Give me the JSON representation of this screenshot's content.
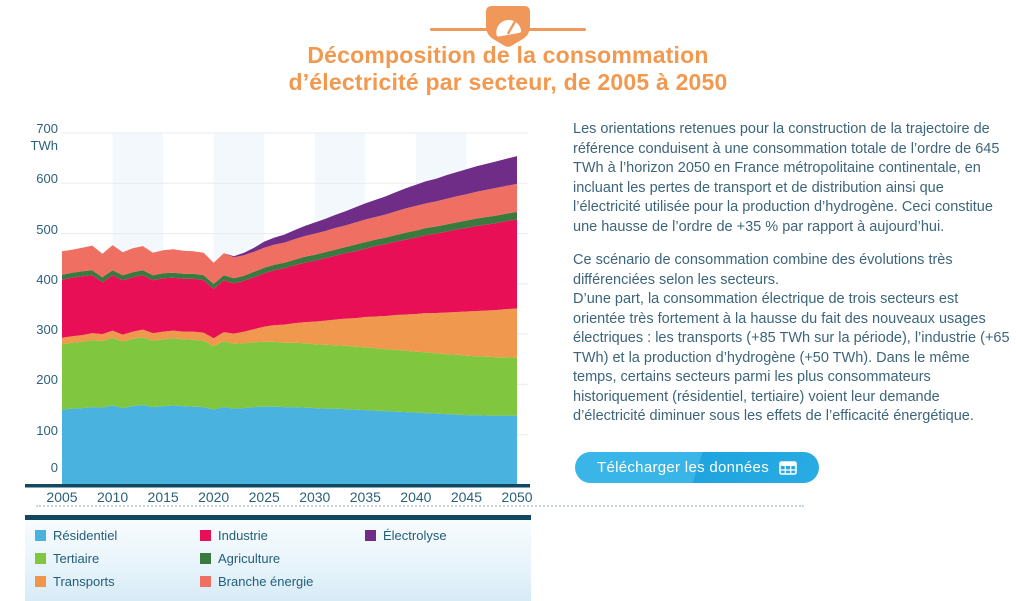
{
  "header": {
    "title_line1": "Décomposition de la consommation",
    "title_line2": "d’électricité par secteur, de 2005 à 2050",
    "accent_color": "#F2994F",
    "icon": "gauge-badge-icon"
  },
  "chart_data": {
    "type": "area",
    "stacked": true,
    "title": "Décomposition de la consommation d’électricité par secteur, de 2005 à 2050",
    "unit": "TWh",
    "y_axis": {
      "min": 0,
      "max": 700,
      "step": 100,
      "unit_label": "TWh"
    },
    "x_ticks": [
      2005,
      2010,
      2015,
      2020,
      2025,
      2030,
      2035,
      2040,
      2045,
      2050
    ],
    "x": [
      2005,
      2006,
      2007,
      2008,
      2009,
      2010,
      2011,
      2012,
      2013,
      2014,
      2015,
      2016,
      2017,
      2018,
      2019,
      2020,
      2021,
      2022,
      2023,
      2024,
      2025,
      2026,
      2027,
      2028,
      2029,
      2030,
      2031,
      2032,
      2033,
      2034,
      2035,
      2036,
      2037,
      2038,
      2039,
      2040,
      2041,
      2042,
      2043,
      2044,
      2045,
      2046,
      2047,
      2048,
      2049,
      2050
    ],
    "series": [
      {
        "name": "Résidentiel",
        "color": "#49B2DF",
        "values": [
          150,
          152,
          153,
          155,
          154,
          158,
          153,
          157,
          159,
          155,
          157,
          158,
          157,
          156,
          155,
          150,
          155,
          152,
          153,
          155,
          156,
          156,
          155,
          155,
          154,
          153,
          152,
          152,
          151,
          150,
          149,
          148,
          147,
          146,
          145,
          144,
          143,
          142,
          141,
          140,
          139,
          139,
          138,
          138,
          138,
          138
        ]
      },
      {
        "name": "Tertiaire",
        "color": "#80C73F",
        "values": [
          130,
          131,
          132,
          133,
          132,
          135,
          132,
          134,
          135,
          132,
          133,
          134,
          133,
          133,
          132,
          126,
          131,
          129,
          129,
          129,
          129,
          129,
          128,
          128,
          128,
          127,
          127,
          126,
          126,
          125,
          125,
          124,
          123,
          123,
          122,
          121,
          121,
          120,
          119,
          119,
          118,
          117,
          117,
          116,
          116,
          115
        ]
      },
      {
        "name": "Transports",
        "color": "#F0994E",
        "values": [
          13,
          13,
          13,
          14,
          14,
          14,
          14,
          14,
          15,
          15,
          15,
          15,
          15,
          16,
          16,
          16,
          18,
          20,
          23,
          26,
          30,
          33,
          36,
          39,
          42,
          45,
          48,
          51,
          54,
          57,
          60,
          63,
          66,
          69,
          72,
          75,
          78,
          80,
          83,
          85,
          88,
          90,
          92,
          94,
          96,
          98
        ]
      },
      {
        "name": "Industrie",
        "color": "#E80F57",
        "values": [
          115,
          116,
          117,
          115,
          103,
          110,
          108,
          108,
          108,
          105,
          106,
          105,
          105,
          105,
          104,
          98,
          103,
          100,
          101,
          103,
          106,
          109,
          112,
          115,
          118,
          121,
          124,
          127,
          130,
          133,
          136,
          140,
          143,
          146,
          149,
          152,
          155,
          158,
          161,
          164,
          166,
          169,
          171,
          173,
          175,
          177
        ]
      },
      {
        "name": "Agriculture",
        "color": "#3B7A3E",
        "values": [
          10,
          10,
          10,
          10,
          10,
          10,
          10,
          10,
          10,
          10,
          10,
          10,
          10,
          10,
          10,
          10,
          10,
          10,
          10,
          11,
          11,
          11,
          11,
          11,
          12,
          12,
          12,
          12,
          12,
          13,
          13,
          13,
          13,
          13,
          14,
          14,
          14,
          14,
          14,
          14,
          15,
          15,
          15,
          15,
          15,
          15
        ]
      },
      {
        "name": "Branche énergie",
        "color": "#EF6F62",
        "values": [
          47,
          46,
          47,
          49,
          47,
          50,
          46,
          48,
          48,
          45,
          46,
          47,
          46,
          45,
          45,
          42,
          44,
          42,
          41,
          40,
          40,
          40,
          40,
          41,
          41,
          42,
          42,
          43,
          43,
          44,
          45,
          45,
          46,
          47,
          48,
          49,
          49,
          50,
          51,
          52,
          52,
          53,
          54,
          55,
          55,
          56
        ]
      },
      {
        "name": "Électrolyse",
        "color": "#6F2D87",
        "values": [
          0,
          0,
          0,
          0,
          0,
          0,
          0,
          0,
          0,
          0,
          0,
          0,
          0,
          0,
          0,
          0,
          0,
          2,
          5,
          8,
          12,
          14,
          16,
          18,
          20,
          22,
          24,
          26,
          28,
          30,
          32,
          34,
          36,
          38,
          40,
          42,
          44,
          45,
          47,
          48,
          50,
          51,
          52,
          53,
          54,
          55
        ]
      }
    ],
    "background_bands_x": [
      [
        2010,
        2015
      ],
      [
        2020,
        2025
      ],
      [
        2030,
        2035
      ],
      [
        2040,
        2045
      ]
    ],
    "legend_position": "bottom",
    "grid": true,
    "theme": {
      "axis_bar": "#12485F",
      "grid_color": "#e8ebee",
      "band_color": "#f2f8fc"
    }
  },
  "legend": {
    "columns": [
      [
        {
          "label": "Résidentiel",
          "color": "#49B2DF"
        },
        {
          "label": "Tertiaire",
          "color": "#80C73F"
        },
        {
          "label": "Transports",
          "color": "#F0964B"
        }
      ],
      [
        {
          "label": "Industrie",
          "color": "#E80F57"
        },
        {
          "label": "Agriculture",
          "color": "#3B7A3E"
        },
        {
          "label": "Branche énergie",
          "color": "#EF6F62"
        }
      ],
      [
        {
          "label": "Électrolyse",
          "color": "#6F2D87"
        }
      ]
    ],
    "column_lefts": [
      35,
      200,
      365
    ]
  },
  "article": {
    "p1": "Les orientations retenues pour la construction de la trajectoire de référence conduisent à une consommation totale de l’ordre de 645 TWh à l’horizon 2050 en France métropolitaine continentale, en incluant les pertes de transport et de distribution ainsi que l’électricité utilisée pour la production d’hydrogène. Ceci constitue une hausse de l’ordre de +35 % par rapport à aujourd’hui.",
    "p2": "Ce scénario de consommation combine des évolutions très différenciées selon les secteurs.",
    "p3": "D’une part, la consommation électrique de trois secteurs est orientée très fortement à la hausse du fait des nouveaux usages électriques : les transports (+85 TWh sur la période), l’industrie (+65 TWh) et la production d’hydrogène (+50 TWh). Dans le même temps, certains secteurs parmi les plus consommateurs historiquement (résidentiel, tertiaire) voient leur demande d’électricité diminuer sous les effets de l’efficacité énergétique."
  },
  "button": {
    "label": "Télécharger les données",
    "icon": "table-grid-icon",
    "color": "#29ABE2"
  }
}
